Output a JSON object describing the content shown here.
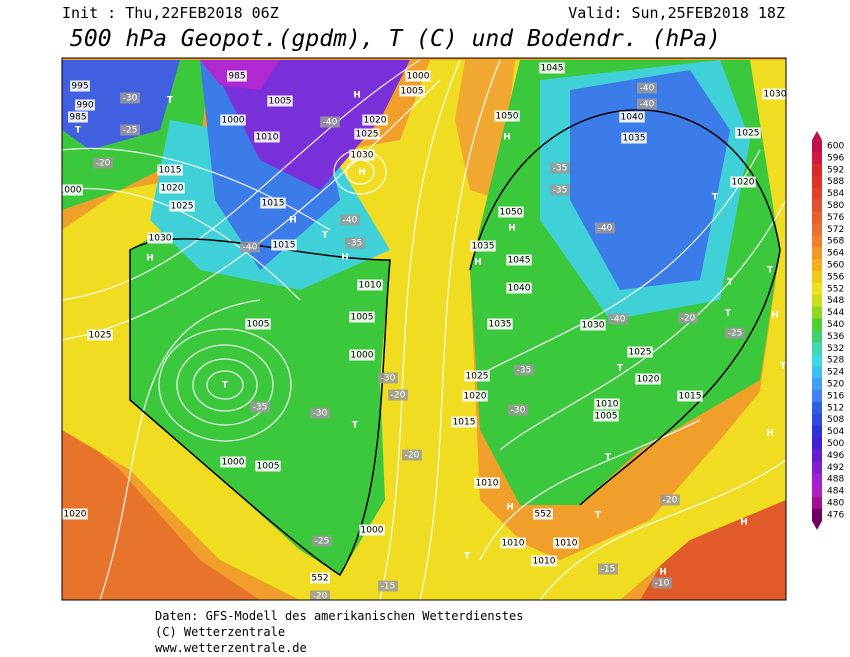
{
  "header": {
    "init": "Init : Thu,22FEB2018 06Z",
    "valid": "Valid: Sun,25FEB2018 18Z",
    "title": "500 hPa Geopot.(gpdm), T (C) und Bodendr. (hPa)"
  },
  "colorbar": {
    "labels": [
      "600",
      "596",
      "592",
      "588",
      "584",
      "580",
      "576",
      "572",
      "568",
      "564",
      "560",
      "556",
      "552",
      "548",
      "544",
      "540",
      "536",
      "532",
      "528",
      "524",
      "520",
      "516",
      "512",
      "508",
      "504",
      "500",
      "496",
      "492",
      "488",
      "484",
      "480",
      "476"
    ]
  },
  "map": {
    "labels": [
      "995",
      "990",
      "985",
      "T",
      "T",
      "-30",
      "-25",
      "-20",
      "1015",
      "1020",
      "1025",
      "1030",
      "H",
      "1025",
      "985",
      "1005",
      "1000",
      "1010",
      "-40",
      "1005",
      "1000",
      "1020",
      "1025",
      "1030",
      "H",
      "1015",
      "H",
      "T",
      "-40",
      "-35",
      "H",
      "1015",
      "-40",
      "1010",
      "1005",
      "1000",
      "1005",
      "T",
      "-35",
      "-30",
      "T",
      "1000",
      "1005",
      "-25",
      "552",
      "1000",
      "-30",
      "-20",
      "-20",
      "1045",
      "1050",
      "H",
      "-40",
      "-40",
      "1040",
      "1035",
      "1025",
      "1020",
      "-35",
      "-35",
      "T",
      "-40",
      "1050",
      "H",
      "1035",
      "1045",
      "H",
      "1040",
      "1035",
      "1030",
      "-40",
      "T",
      "T",
      "-20",
      "-25",
      "1025",
      "T",
      "1020",
      "1015",
      "-35",
      "-30",
      "1005",
      "1010",
      "T",
      "1025",
      "1020",
      "1015",
      "1010",
      "H",
      "1010",
      "1010",
      "T",
      "T",
      "1010",
      "-15",
      "H",
      "-10",
      "-20",
      "H",
      "H",
      "T",
      "H",
      "T",
      "1030",
      "1020",
      "1000",
      "-20",
      "-15",
      "H",
      "552"
    ]
  },
  "footer": {
    "line1": "Daten: GFS-Modell des amerikanischen Wetterdienstes",
    "line2": "(C) Wetterzentrale",
    "line3": "www.wetterzentrale.de"
  }
}
